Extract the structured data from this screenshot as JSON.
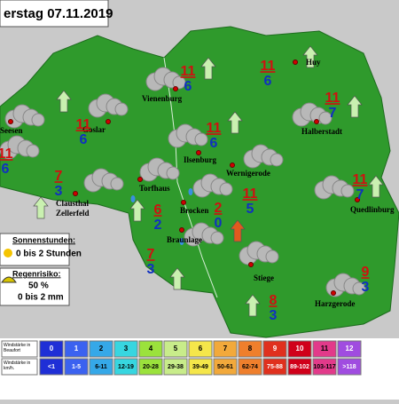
{
  "header": {
    "title": "erstag 07.11.2019"
  },
  "places": [
    {
      "lines": [
        "Seesen"
      ]
    },
    {
      "lines": [
        "Goslar"
      ]
    },
    {
      "lines": [
        "Vienenburg"
      ]
    },
    {
      "lines": [
        "Huy"
      ]
    },
    {
      "lines": [
        "Halberstadt"
      ]
    },
    {
      "lines": [
        "Ilsenburg"
      ]
    },
    {
      "lines": [
        "Wernigerode"
      ]
    },
    {
      "lines": [
        "Torfhaus"
      ]
    },
    {
      "lines": [
        "Clausthal",
        "Zellerfeld"
      ]
    },
    {
      "lines": [
        "Brocken"
      ]
    },
    {
      "lines": [
        "Quedlinburg"
      ]
    },
    {
      "lines": [
        "Braunlage"
      ]
    },
    {
      "lines": [
        "Stiege"
      ]
    },
    {
      "lines": [
        "Harzgerode"
      ]
    }
  ],
  "temperatures": [
    {
      "max": 11,
      "min": 6
    },
    {
      "max": 11,
      "min": 6
    },
    {
      "max": 11,
      "min": 6
    },
    {
      "max": 11,
      "min": 6
    },
    {
      "max": 11,
      "min": 7
    },
    {
      "max": 11,
      "min": 6
    },
    {
      "max": 7,
      "min": 3
    },
    {
      "max": 6,
      "min": 2
    },
    {
      "max": 2,
      "min": 0
    },
    {
      "max": 11,
      "min": 5
    },
    {
      "max": 11,
      "min": 7
    },
    {
      "max": 7,
      "min": 3
    },
    {
      "max": 8,
      "min": 3
    },
    {
      "max": 9,
      "min": 3
    }
  ],
  "sun": {
    "label": "Sonnenstunden:",
    "value": "0 bis 2 Stunden"
  },
  "rain": {
    "label": "Regenrisiko:",
    "chance": "50 %",
    "amount": "0 bis 2 mm"
  },
  "wind_scale": {
    "beaufort_label": "Windstärke in Beaufort",
    "kmh_label": "Windstärke in km/h.",
    "beaufort": [
      0,
      1,
      2,
      3,
      4,
      5,
      6,
      7,
      8,
      9,
      10,
      11,
      12
    ],
    "kmh": [
      "<1",
      "1-5",
      "6-11",
      "12-19",
      "20-28",
      "29-38",
      "39-49",
      "50-61",
      "62-74",
      "75-88",
      "89-102",
      "103-117",
      ">118"
    ],
    "colors": [
      "#1f2fd6",
      "#3b62f0",
      "#35a8e8",
      "#37d6e0",
      "#9be23c",
      "#c8ec8a",
      "#f5e64a",
      "#f2a93b",
      "#ef7f2c",
      "#e0301e",
      "#d0001a",
      "#e23a8a",
      "#a04ce0"
    ]
  }
}
